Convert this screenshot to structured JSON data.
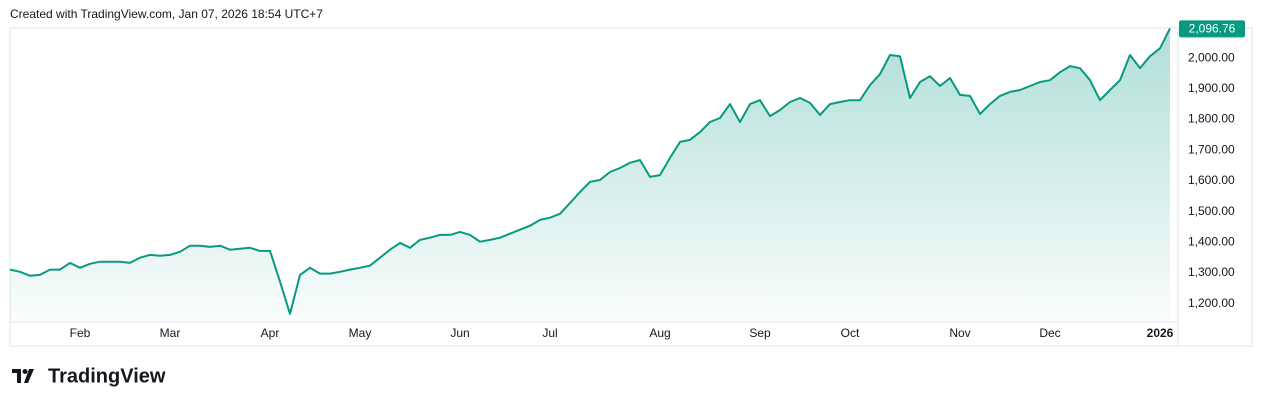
{
  "chart_data": {
    "type": "area",
    "subtitle": "Created with TradingView.com, Jan 07, 2026 18:54 UTC+7",
    "brand": "TradingView",
    "categories": [
      null,
      null,
      null,
      null,
      null,
      null,
      null,
      "Feb",
      null,
      null,
      null,
      null,
      null,
      null,
      null,
      null,
      "Mar",
      null,
      null,
      null,
      null,
      null,
      null,
      null,
      null,
      null,
      "Apr",
      null,
      null,
      null,
      null,
      null,
      null,
      null,
      null,
      "May",
      null,
      null,
      null,
      null,
      null,
      null,
      null,
      null,
      null,
      "Jun",
      null,
      null,
      null,
      null,
      null,
      null,
      null,
      null,
      "Jul",
      null,
      null,
      null,
      null,
      null,
      null,
      null,
      null,
      null,
      null,
      "Aug",
      null,
      null,
      null,
      null,
      null,
      null,
      null,
      null,
      null,
      "Sep",
      null,
      null,
      null,
      null,
      null,
      null,
      null,
      null,
      "Oct",
      null,
      null,
      null,
      null,
      null,
      null,
      null,
      null,
      null,
      null,
      "Nov",
      null,
      null,
      null,
      null,
      null,
      null,
      null,
      null,
      "Dec",
      null,
      null,
      null,
      null,
      null,
      null,
      null,
      null,
      null,
      null,
      "2026",
      null
    ],
    "series": [
      {
        "color": "#089981",
        "values": [
          1311,
          1304,
          1291,
          1294,
          1311,
          1311,
          1333,
          1317,
          1330,
          1337,
          1337,
          1337,
          1333,
          1350,
          1359,
          1356,
          1359,
          1369,
          1389,
          1389,
          1385,
          1389,
          1376,
          1379,
          1382,
          1372,
          1372,
          1272,
          1167,
          1294,
          1317,
          1298,
          1298,
          1304,
          1311,
          1317,
          1324,
          1350,
          1376,
          1398,
          1382,
          1408,
          1415,
          1424,
          1424,
          1434,
          1424,
          1402,
          1408,
          1415,
          1428,
          1441,
          1454,
          1473,
          1480,
          1493,
          1528,
          1564,
          1597,
          1603,
          1629,
          1642,
          1659,
          1668,
          1613,
          1619,
          1675,
          1727,
          1734,
          1759,
          1792,
          1805,
          1850,
          1792,
          1850,
          1863,
          1811,
          1831,
          1857,
          1870,
          1854,
          1815,
          1850,
          1857,
          1863,
          1863,
          1912,
          1948,
          2010,
          2006,
          1870,
          1922,
          1941,
          1909,
          1935,
          1880,
          1877,
          1818,
          1850,
          1877,
          1890,
          1896,
          1909,
          1922,
          1928,
          1954,
          1974,
          1967,
          1928,
          1863,
          1896,
          1928,
          2010,
          1967,
          2006,
          2032,
          2096.76
        ]
      }
    ],
    "last_price": {
      "value": 2096.76,
      "label": "2,096.76"
    },
    "ylim": [
      1160,
      2098
    ],
    "yticks": [
      {
        "value": 1200,
        "label": "1,200.00"
      },
      {
        "value": 1300,
        "label": "1,300.00"
      },
      {
        "value": 1400,
        "label": "1,400.00"
      },
      {
        "value": 1500,
        "label": "1,500.00"
      },
      {
        "value": 1600,
        "label": "1,600.00"
      },
      {
        "value": 1700,
        "label": "1,700.00"
      },
      {
        "value": 1800,
        "label": "1,800.00"
      },
      {
        "value": 1900,
        "label": "1,900.00"
      },
      {
        "value": 2000,
        "label": "2,000.00"
      }
    ],
    "grid": false
  }
}
